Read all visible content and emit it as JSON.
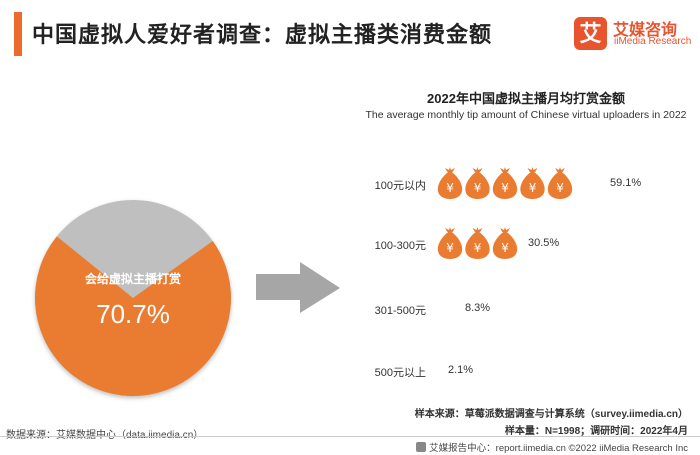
{
  "header": {
    "title": "中国虚拟人爱好者调查：虚拟主播类消费金额",
    "accent_color": "#ea6b2d"
  },
  "logo": {
    "mark": "艾",
    "cn": "艾媒咨询",
    "en": "iiMedia Research",
    "color": "#e8542e"
  },
  "pie": {
    "label": "会给虚拟主播打赏",
    "value_text": "70.7%",
    "value": 70.7,
    "slice_color": "#ea7c32",
    "rest_color": "#bfbfbf"
  },
  "chart_data": {
    "type": "bar",
    "title": "2022年中国虚拟主播月均打赏金额",
    "subtitle": "The average monthly tip amount of Chinese virtual uploaders in 2022",
    "categories": [
      "100元以内",
      "100-300元",
      "301-500元",
      "500元以上"
    ],
    "values": [
      59.1,
      30.5,
      8.3,
      2.1
    ],
    "value_labels": [
      "59.1%",
      "30.5%",
      "8.3%",
      "2.1%"
    ],
    "unit": "%",
    "icon": "money-bag-icon",
    "icon_color": "#ea7c32"
  },
  "source": {
    "left": "数据来源：艾媒数据中心（data.iimedia.cn）",
    "sample_source": "样本来源：草莓派数据调查与计算系统（survey.iimedia.cn）",
    "sample_size": "样本量：N=1998；调研时间：2022年4月"
  },
  "footer": {
    "text": "艾媒报告中心：report.iimedia.cn   ©2022 iiMedia Research Inc"
  }
}
